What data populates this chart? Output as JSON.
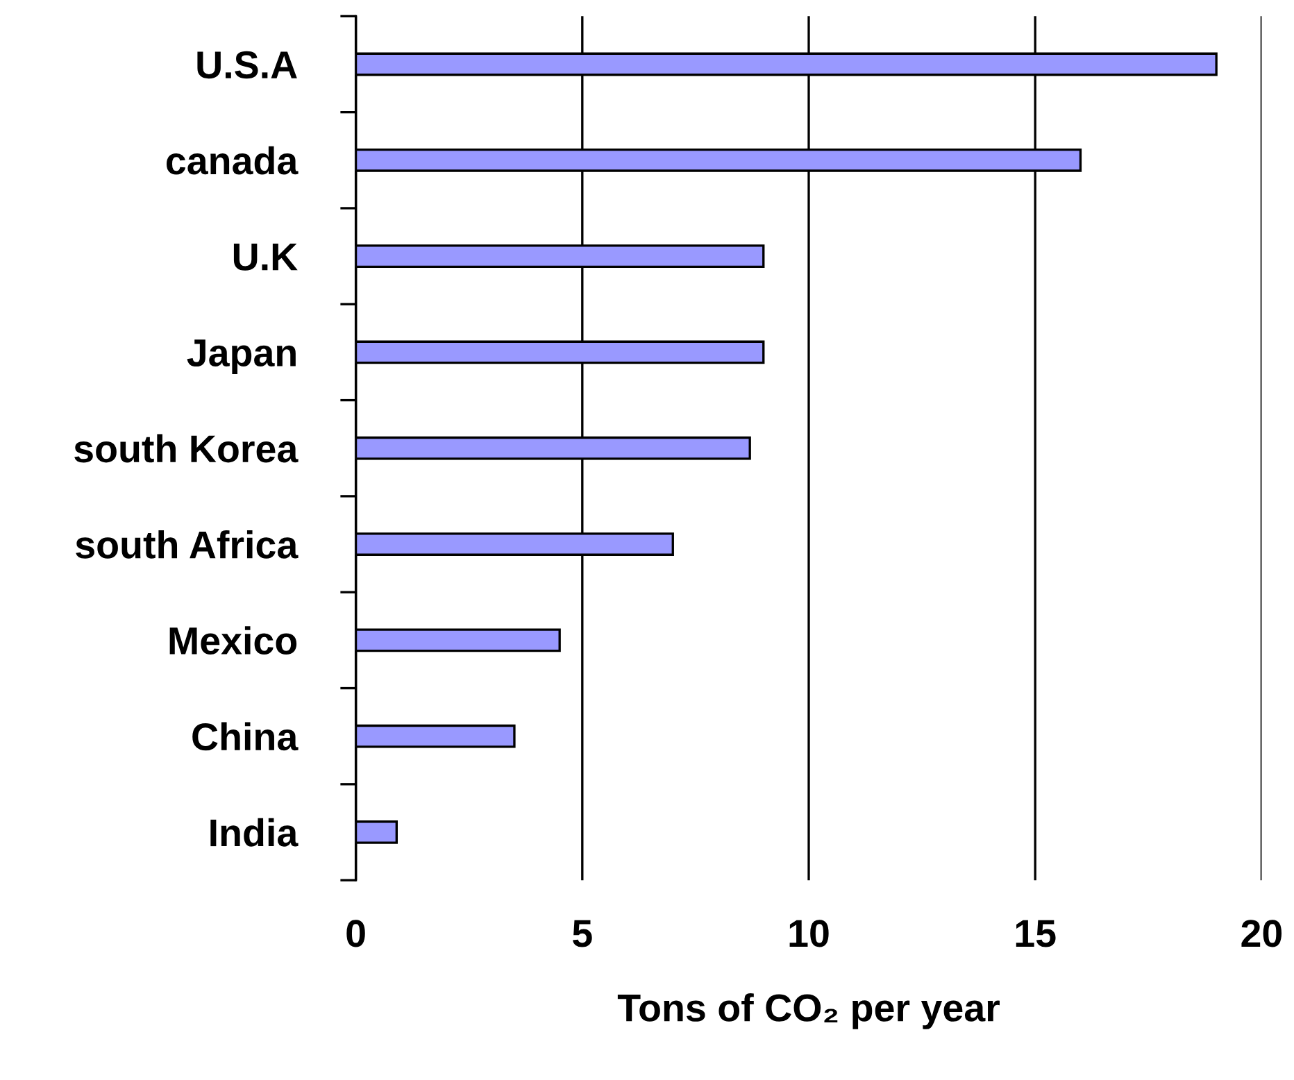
{
  "chart_data": {
    "type": "bar",
    "orientation": "horizontal",
    "categories": [
      "U.S.A",
      "canada",
      "U.K",
      "Japan",
      "south Korea",
      "south Africa",
      "Mexico",
      "China",
      "India"
    ],
    "values": [
      19,
      16,
      9,
      9,
      8.7,
      7,
      4.5,
      3.5,
      0.9
    ],
    "color": "#9999ff",
    "xlabel": "Tons of CO₂ per year",
    "xlim": [
      0,
      20
    ],
    "xticks": [
      0,
      5,
      10,
      15,
      20
    ],
    "grid": "x"
  }
}
